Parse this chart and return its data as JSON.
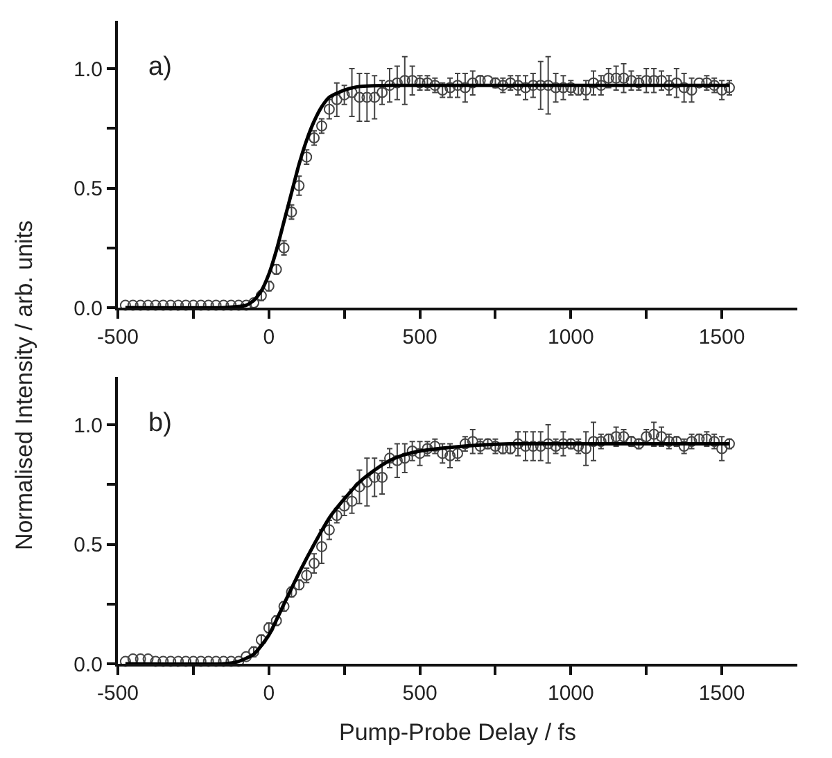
{
  "chart_data": [
    {
      "type": "scatter",
      "ylabel": "Normalised Intensity / arb. units",
      "annotations": [
        "a)"
      ],
      "grid": false,
      "xlim": [
        -500,
        1750
      ],
      "xticks": [
        -500,
        {
          "value": -250,
          "label": null
        },
        0,
        {
          "value": 250,
          "label": null
        },
        500,
        {
          "value": 750,
          "label": null
        },
        1000,
        {
          "value": 1250,
          "label": null
        },
        1500
      ],
      "ylim": [
        0,
        1.2
      ],
      "yticks": [
        {
          "value": 0,
          "label": "0.0"
        },
        {
          "value": 0.25,
          "label": null
        },
        {
          "value": 0.5,
          "label": "0.5"
        },
        {
          "value": 0.75,
          "label": null
        },
        {
          "value": 1,
          "label": "1.0"
        }
      ],
      "series": [
        {
          "marker": "circle",
          "color": "#444444",
          "x": [
            -475,
            -450,
            -425,
            -400,
            -375,
            -350,
            -325,
            -300,
            -275,
            -250,
            -225,
            -200,
            -175,
            -150,
            -125,
            -100,
            -75,
            -50,
            -25,
            0,
            25,
            50,
            75,
            100,
            125,
            150,
            175,
            200,
            225,
            250,
            275,
            300,
            325,
            350,
            375,
            400,
            425,
            450,
            475,
            500,
            525,
            550,
            575,
            600,
            625,
            650,
            675,
            700,
            725,
            750,
            775,
            800,
            825,
            850,
            875,
            900,
            925,
            950,
            975,
            1000,
            1025,
            1050,
            1075,
            1100,
            1125,
            1150,
            1175,
            1200,
            1225,
            1250,
            1275,
            1300,
            1325,
            1350,
            1375,
            1400,
            1425,
            1450,
            1475,
            1500,
            1525
          ],
          "values": [
            0.01,
            0.01,
            0.01,
            0.01,
            0.01,
            0.01,
            0.01,
            0.01,
            0.01,
            0.01,
            0.01,
            0.01,
            0.01,
            0.01,
            0.01,
            0.01,
            0.01,
            0.02,
            0.05,
            0.09,
            0.16,
            0.25,
            0.4,
            0.51,
            0.63,
            0.71,
            0.76,
            0.83,
            0.87,
            0.89,
            0.9,
            0.88,
            0.88,
            0.88,
            0.9,
            0.93,
            0.94,
            0.95,
            0.95,
            0.94,
            0.94,
            0.93,
            0.91,
            0.92,
            0.93,
            0.92,
            0.94,
            0.95,
            0.95,
            0.94,
            0.93,
            0.94,
            0.93,
            0.92,
            0.93,
            0.93,
            0.93,
            0.92,
            0.92,
            0.92,
            0.91,
            0.91,
            0.94,
            0.93,
            0.96,
            0.96,
            0.96,
            0.95,
            0.94,
            0.95,
            0.95,
            0.95,
            0.93,
            0.94,
            0.92,
            0.91,
            0.94,
            0.94,
            0.93,
            0.91,
            0.92
          ],
          "errors": [
            null,
            null,
            null,
            null,
            null,
            null,
            null,
            null,
            null,
            null,
            null,
            null,
            null,
            null,
            null,
            null,
            null,
            null,
            0.02,
            0.02,
            0.02,
            0.03,
            0.03,
            0.04,
            0.03,
            0.03,
            0.03,
            0.04,
            0.07,
            0.04,
            0.1,
            0.1,
            0.1,
            0.09,
            0.05,
            0.07,
            0.07,
            0.1,
            0.06,
            0.03,
            0.03,
            0.03,
            0.03,
            0.04,
            0.05,
            0.06,
            0.05,
            0.02,
            null,
            0.02,
            0.03,
            0.03,
            0.04,
            0.05,
            0.05,
            0.1,
            0.12,
            0.06,
            0.05,
            0.03,
            0.02,
            0.04,
            0.05,
            0.04,
            0.04,
            0.05,
            0.06,
            0.04,
            0.03,
            0.05,
            0.05,
            0.04,
            0.04,
            0.06,
            0.06,
            0.05,
            null,
            0.03,
            0.03,
            0.04,
            0.03
          ]
        },
        {
          "type": "line",
          "line_style": "solid",
          "color": "#000000",
          "x": [
            -475,
            -150,
            -100,
            -75,
            -50,
            -25,
            0,
            25,
            50,
            75,
            100,
            125,
            150,
            175,
            200,
            250,
            300,
            400,
            1525
          ],
          "values": [
            0,
            0,
            0.005,
            0.01,
            0.03,
            0.07,
            0.14,
            0.24,
            0.36,
            0.48,
            0.6,
            0.7,
            0.78,
            0.84,
            0.88,
            0.91,
            0.925,
            0.93,
            0.93
          ]
        }
      ]
    },
    {
      "type": "scatter",
      "xlabel": "Pump-Probe Delay / fs",
      "annotations": [
        "b)"
      ],
      "grid": false,
      "xlim": [
        -500,
        1750
      ],
      "xticks": [
        -500,
        {
          "value": -250,
          "label": null
        },
        0,
        {
          "value": 250,
          "label": null
        },
        500,
        {
          "value": 750,
          "label": null
        },
        1000,
        {
          "value": 1250,
          "label": null
        },
        1500
      ],
      "ylim": [
        0,
        1.2
      ],
      "yticks": [
        {
          "value": 0,
          "label": "0.0"
        },
        {
          "value": 0.25,
          "label": null
        },
        {
          "value": 0.5,
          "label": "0.5"
        },
        {
          "value": 0.75,
          "label": null
        },
        {
          "value": 1,
          "label": "1.0"
        }
      ],
      "series": [
        {
          "marker": "circle",
          "color": "#444444",
          "x": [
            -475,
            -450,
            -425,
            -400,
            -375,
            -350,
            -325,
            -300,
            -275,
            -250,
            -225,
            -200,
            -175,
            -150,
            -125,
            -100,
            -75,
            -50,
            -25,
            0,
            25,
            50,
            75,
            100,
            125,
            150,
            175,
            200,
            225,
            250,
            275,
            300,
            325,
            350,
            375,
            400,
            425,
            450,
            475,
            500,
            525,
            550,
            575,
            600,
            625,
            650,
            675,
            700,
            725,
            750,
            775,
            800,
            825,
            850,
            875,
            900,
            925,
            950,
            975,
            1000,
            1025,
            1050,
            1075,
            1100,
            1125,
            1150,
            1175,
            1200,
            1225,
            1250,
            1275,
            1300,
            1325,
            1350,
            1375,
            1400,
            1425,
            1450,
            1475,
            1500,
            1525
          ],
          "values": [
            0.01,
            0.02,
            0.02,
            0.02,
            0.01,
            0.01,
            0.01,
            0.01,
            0.01,
            0.01,
            0.01,
            0.01,
            0.01,
            0.01,
            0.01,
            0.01,
            0.03,
            0.05,
            0.1,
            0.15,
            0.18,
            0.24,
            0.3,
            0.33,
            0.37,
            0.42,
            0.49,
            0.56,
            0.62,
            0.66,
            0.68,
            0.74,
            0.76,
            0.78,
            0.78,
            0.86,
            0.85,
            0.86,
            0.89,
            0.88,
            0.9,
            0.91,
            0.88,
            0.87,
            0.88,
            0.92,
            0.93,
            0.91,
            0.92,
            0.91,
            0.9,
            0.9,
            0.92,
            0.91,
            0.91,
            0.91,
            0.92,
            0.91,
            0.92,
            0.92,
            0.91,
            0.9,
            0.93,
            0.93,
            0.94,
            0.95,
            0.95,
            0.93,
            0.92,
            0.95,
            0.96,
            0.95,
            0.93,
            0.93,
            0.91,
            0.93,
            0.94,
            0.94,
            0.93,
            0.9,
            0.92
          ],
          "errors": [
            null,
            null,
            null,
            null,
            null,
            null,
            null,
            null,
            null,
            null,
            null,
            null,
            null,
            null,
            null,
            null,
            null,
            0.02,
            0.02,
            0.02,
            0.02,
            0.02,
            0.02,
            0.02,
            0.03,
            0.04,
            0.07,
            0.04,
            0.03,
            0.04,
            0.05,
            0.07,
            0.1,
            0.08,
            0.07,
            0.04,
            0.07,
            0.06,
            0.04,
            0.05,
            0.03,
            0.03,
            0.04,
            0.05,
            0.03,
            0.03,
            0.05,
            0.03,
            0.02,
            0.03,
            0.02,
            0.02,
            0.05,
            0.06,
            0.06,
            0.06,
            0.08,
            0.03,
            0.05,
            0.02,
            0.03,
            0.07,
            0.08,
            0.03,
            0.02,
            0.04,
            0.03,
            0.02,
            0.02,
            0.03,
            0.05,
            0.04,
            0.03,
            0.02,
            0.03,
            0.03,
            0.02,
            0.03,
            0.03,
            0.05,
            0.02
          ]
        },
        {
          "type": "line",
          "line_style": "solid",
          "color": "#000000",
          "x": [
            -475,
            -150,
            -100,
            -50,
            0,
            50,
            100,
            150,
            200,
            250,
            300,
            350,
            400,
            450,
            500,
            600,
            700,
            800,
            1525
          ],
          "values": [
            0,
            0,
            0.01,
            0.04,
            0.12,
            0.25,
            0.38,
            0.5,
            0.61,
            0.69,
            0.76,
            0.81,
            0.85,
            0.875,
            0.89,
            0.905,
            0.915,
            0.92,
            0.92
          ]
        }
      ]
    }
  ]
}
